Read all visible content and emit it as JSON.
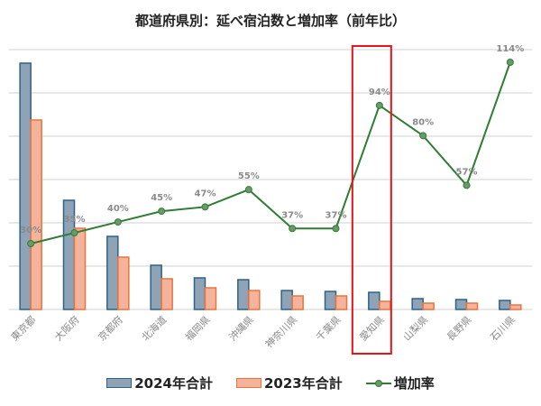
{
  "chart_data": {
    "type": "bar+line",
    "title": "都道府県別：延べ宿泊数と増加率（前年比）",
    "xlabel": "",
    "ylabel": "",
    "y_axis_labels_visible": false,
    "grid": true,
    "legend_position": "bottom",
    "categories": [
      "東京都",
      "大阪府",
      "京都府",
      "北海道",
      "福岡県",
      "沖縄県",
      "神奈川県",
      "千葉県",
      "愛知県",
      "山梨県",
      "長野県",
      "石川県"
    ],
    "series": [
      {
        "name": "2024年合計",
        "type": "bar",
        "color": "#8ea3b6",
        "border": "#2e6288",
        "values": [
          273,
          121,
          81,
          49,
          35,
          33,
          21,
          20,
          19,
          12,
          11,
          10
        ]
      },
      {
        "name": "2023年合計",
        "type": "bar",
        "color": "#f4b39a",
        "border": "#e8753f",
        "values": [
          210,
          90,
          58,
          34,
          24,
          21,
          15,
          15,
          9,
          7,
          7,
          5
        ]
      },
      {
        "name": "増加率",
        "type": "line",
        "color": "#2e7d32",
        "marker_color": "#6a9a6a",
        "values": [
          30,
          35,
          40,
          45,
          47,
          55,
          37,
          37,
          94,
          80,
          57,
          114
        ],
        "labels": [
          "30%",
          "35%",
          "40%",
          "45%",
          "47%",
          "55%",
          "37%",
          "37%",
          "94%",
          "80%",
          "57%",
          "114%"
        ]
      }
    ],
    "bar_units_note": "relative heights (gridline step = 48 units); no y-axis tick labels shown",
    "highlight": {
      "category": "愛知県",
      "color": "#e8141a"
    }
  },
  "legend": {
    "item_2024": "2024年合計",
    "item_2023": "2023年合計",
    "item_rate": "増加率"
  }
}
